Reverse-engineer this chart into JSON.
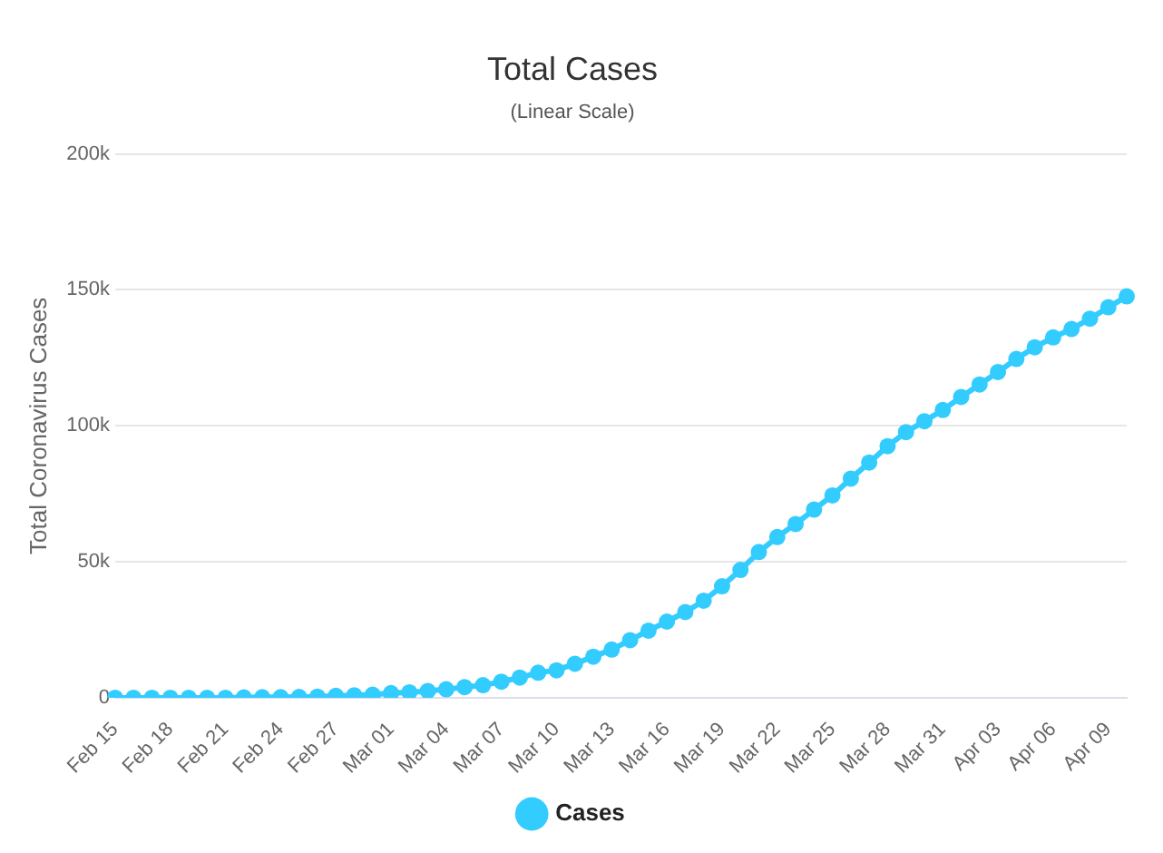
{
  "chart_data": {
    "type": "line",
    "title": "Total Cases",
    "subtitle": "(Linear Scale)",
    "ylabel": "Total Coronavirus Cases",
    "categories": [
      "Feb 15",
      null,
      null,
      "Feb 18",
      null,
      null,
      "Feb 21",
      null,
      null,
      "Feb 24",
      null,
      null,
      "Feb 27",
      null,
      null,
      "Mar 01",
      null,
      null,
      "Mar 04",
      null,
      null,
      "Mar 07",
      null,
      null,
      "Mar 10",
      null,
      null,
      "Mar 13",
      null,
      null,
      "Mar 16",
      null,
      null,
      "Mar 19",
      null,
      null,
      "Mar 22",
      null,
      null,
      "Mar 25",
      null,
      null,
      "Mar 28",
      null,
      null,
      "Mar 31",
      null,
      null,
      "Apr 03",
      null,
      null,
      "Apr 06",
      null,
      null,
      "Apr 09",
      null
    ],
    "series": [
      {
        "name": "Cases",
        "color": "#33ccff",
        "values": [
          0,
          0,
          0,
          0,
          0,
          0,
          0,
          100,
          200,
          200,
          300,
          400,
          700,
          900,
          1100,
          1700,
          2000,
          2500,
          3100,
          3900,
          4600,
          5900,
          7400,
          9200,
          10100,
          12500,
          15100,
          17700,
          21200,
          24700,
          28000,
          31500,
          35700,
          41000,
          47000,
          53600,
          59100,
          63900,
          69200,
          74400,
          80600,
          86500,
          92500,
          97700,
          101700,
          105800,
          110600,
          115200,
          119800,
          124600,
          128900,
          132500,
          135600,
          139400,
          143600,
          147600
        ]
      }
    ],
    "ylim": [
      0,
      200000
    ],
    "yticks": [
      0,
      {
        "value": 50000,
        "label": "50k"
      },
      {
        "value": 100000,
        "label": "100k"
      },
      {
        "value": 150000,
        "label": "150k"
      },
      {
        "value": 200000,
        "label": "200k"
      }
    ],
    "grid": "y",
    "legend": "bottom",
    "marker": "circle",
    "line_style": "solid"
  }
}
